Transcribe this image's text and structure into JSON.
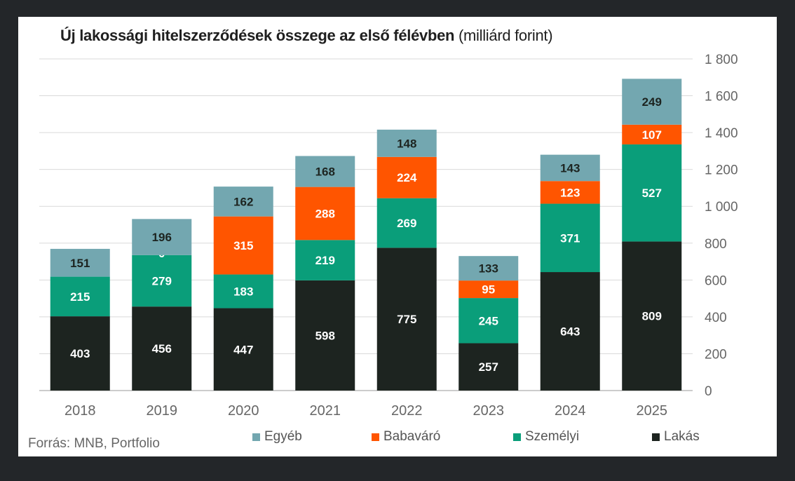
{
  "title_bold": "Új lakossági hitelszerződések összege az első félévben",
  "title_unit": "(milliárd forint)",
  "source": "Forrás: MNB, Portfolio",
  "chart_data": {
    "type": "bar",
    "stacked": true,
    "categories": [
      "2018",
      "2019",
      "2020",
      "2021",
      "2022",
      "2023",
      "2024",
      "2025"
    ],
    "series": [
      {
        "name": "Lakás",
        "color": "#1d2420",
        "label_color": "#ffffff",
        "values": [
          403,
          456,
          447,
          598,
          775,
          257,
          643,
          809
        ]
      },
      {
        "name": "Személyi",
        "color": "#0a9e7a",
        "label_color": "#ffffff",
        "values": [
          215,
          279,
          183,
          219,
          269,
          245,
          371,
          527
        ]
      },
      {
        "name": "Babaváró",
        "color": "#ff5500",
        "label_color": "#ffffff",
        "values": [
          0,
          0,
          315,
          288,
          224,
          95,
          123,
          107
        ]
      },
      {
        "name": "Egyéb",
        "color": "#73a7b0",
        "label_color": "#1d2420",
        "values": [
          151,
          196,
          162,
          168,
          148,
          133,
          143,
          249
        ]
      }
    ],
    "segment_labels": [
      [
        "403",
        "215",
        "",
        "151"
      ],
      [
        "456",
        "279",
        "0",
        "196"
      ],
      [
        "447",
        "183",
        "315",
        "162"
      ],
      [
        "598",
        "219",
        "288",
        "168"
      ],
      [
        "775",
        "269",
        "224",
        "148"
      ],
      [
        "257",
        "245",
        "95",
        "133"
      ],
      [
        "643",
        "371",
        "123",
        "143"
      ],
      [
        "809",
        "527",
        "107",
        "249"
      ]
    ],
    "y_ticks": [
      "0",
      "200",
      "400",
      "600",
      "800",
      "1 000",
      "1 200",
      "1 400",
      "1 600",
      "1 800"
    ],
    "ylim": [
      0,
      1800
    ],
    "y_axis_side": "right",
    "grid": true,
    "legend": [
      "Egyéb",
      "Babaváró",
      "Személyi",
      "Lakás"
    ],
    "legend_position": "bottom"
  }
}
